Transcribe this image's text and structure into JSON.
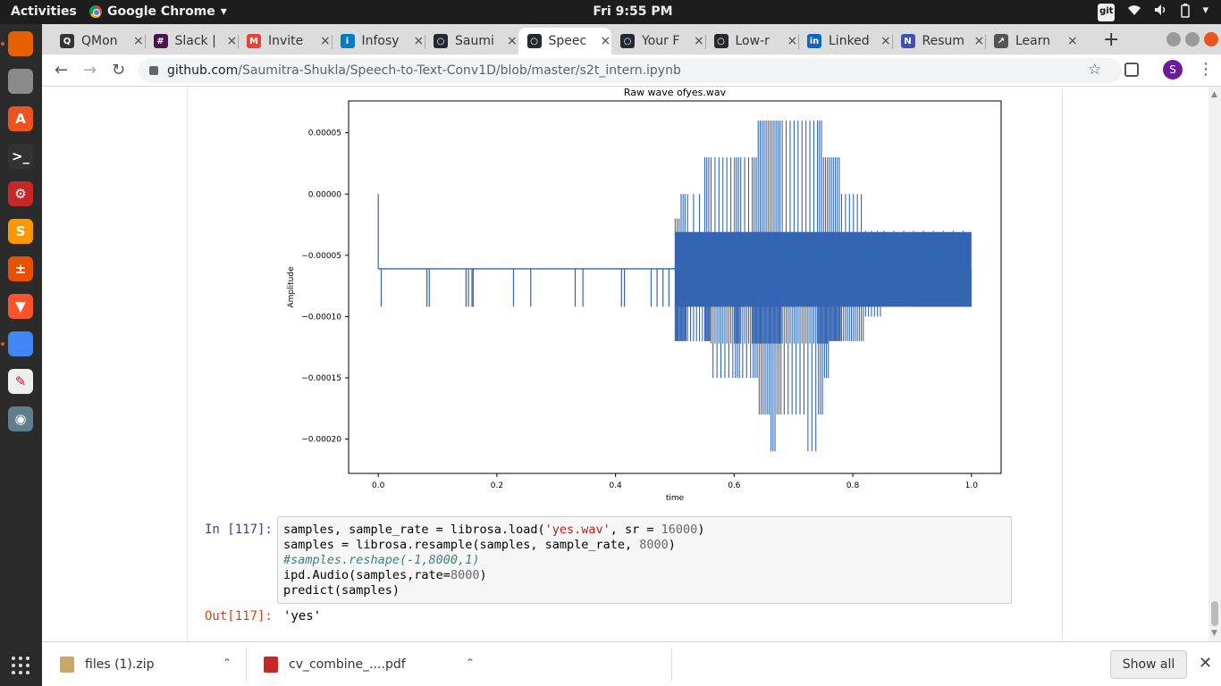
{
  "topbar": {
    "activities": "Activities",
    "app_name": "Google Chrome",
    "app_caret": "▾",
    "clock": "Fri  9:55 PM",
    "tray": {
      "git": "git",
      "wifi": "wifi-icon",
      "volume": "volume-icon",
      "battery": "battery-icon",
      "caret": "▾"
    }
  },
  "dock": {
    "items": [
      {
        "name": "firefox",
        "glyph": "",
        "color": "#e66000"
      },
      {
        "name": "files",
        "glyph": "",
        "color": "#8a8a8a"
      },
      {
        "name": "software",
        "glyph": "A",
        "color": "#e95420"
      },
      {
        "name": "terminal",
        "glyph": ">_",
        "color": "#333333"
      },
      {
        "name": "settings",
        "glyph": "⚙",
        "color": "#c62828"
      },
      {
        "name": "sublime",
        "glyph": "S",
        "color": "#ff9800"
      },
      {
        "name": "calculator",
        "glyph": "±",
        "color": "#e65100"
      },
      {
        "name": "brave",
        "glyph": "▼",
        "color": "#fb542b"
      },
      {
        "name": "chrome",
        "glyph": "",
        "color": "#4285f4"
      },
      {
        "name": "text-editor",
        "glyph": "✎",
        "color": "#eeeeee"
      },
      {
        "name": "screenshot",
        "glyph": "◉",
        "color": "#607d8b"
      }
    ]
  },
  "tabs": [
    {
      "label": "QMon",
      "icon_color": "#333333",
      "icon_glyph": "Q"
    },
    {
      "label": "Slack |",
      "icon_color": "#4a154b",
      "icon_glyph": "#"
    },
    {
      "label": "Invite",
      "icon_color": "#ea4335",
      "icon_glyph": "M"
    },
    {
      "label": "Infosy",
      "icon_color": "#007cc3",
      "icon_glyph": "i"
    },
    {
      "label": "Saumi",
      "icon_color": "#24292e",
      "icon_glyph": "○"
    },
    {
      "label": "Speec",
      "icon_color": "#24292e",
      "icon_glyph": "○"
    },
    {
      "label": "Your F",
      "icon_color": "#24292e",
      "icon_glyph": "○"
    },
    {
      "label": "Low-r",
      "icon_color": "#24292e",
      "icon_glyph": "○"
    },
    {
      "label": "Linked",
      "icon_color": "#0a66c2",
      "icon_glyph": "in"
    },
    {
      "label": "Resum",
      "icon_color": "#3f51b5",
      "icon_glyph": "N"
    },
    {
      "label": "Learn",
      "icon_color": "#555555",
      "icon_glyph": "↗"
    }
  ],
  "tab_close": "×",
  "new_tab": "+",
  "toolbar": {
    "back": "←",
    "forward": "→",
    "reload": "↻",
    "url_host": "github.com",
    "url_path": "/Saumitra-Shukla/Speech-to-Text-Conv1D/blob/master/s2t_intern.ipynb",
    "star": "☆",
    "profile_initial": "S",
    "menu": "⋮"
  },
  "chart_data": {
    "type": "line",
    "title": "Raw wave ofyes.wav",
    "xlabel": "time",
    "ylabel": "Amplitude",
    "xlim": [
      -0.05,
      1.05
    ],
    "ylim": [
      -0.000228,
      7.6e-05
    ],
    "xticks": [
      0.0,
      0.2,
      0.4,
      0.6,
      0.8,
      1.0
    ],
    "xtick_labels": [
      "0.0",
      "0.2",
      "0.4",
      "0.6",
      "0.8",
      "1.0"
    ],
    "yticks": [
      5e-05,
      0.0,
      -5e-05,
      -0.0001,
      -0.00015,
      -0.0002
    ],
    "ytick_labels": [
      "0.00005",
      "0.00000",
      "−0.00005",
      "−0.00010",
      "−0.00015",
      "−0.00020"
    ],
    "series": [
      {
        "color": "#3465b3",
        "baseline": -6.1e-05,
        "segments": [
          {
            "x_start": 0.0,
            "x_end": 0.0,
            "y_min": -6.1e-05,
            "y_max": 0.0
          },
          {
            "x_start": 0.0,
            "x_end": 0.5,
            "y_min": -6.1e-05,
            "y_max": -6.1e-05
          },
          {
            "x_start": 0.5,
            "x_end": 1.0,
            "y_min": -9.2e-05,
            "y_max": -3.1e-05
          }
        ],
        "spikes_down": [
          0.005,
          0.082,
          0.086,
          0.148,
          0.152,
          0.158,
          0.16,
          0.228,
          0.257,
          0.332,
          0.345,
          0.41,
          0.415,
          0.46,
          0.47,
          0.48,
          0.49
        ],
        "envelope": {
          "x": [
            0.5,
            0.51,
            0.52,
            0.55,
            0.56,
            0.58,
            0.6,
            0.61,
            0.63,
            0.64,
            0.65,
            0.66,
            0.67,
            0.68,
            0.7,
            0.72,
            0.74,
            0.75,
            0.76,
            0.77,
            0.78,
            0.8,
            0.82,
            0.85,
            0.9,
            0.95,
            1.0
          ],
          "top": [
            -2e-05,
            0.0,
            0.0,
            3e-05,
            3e-05,
            3e-05,
            3e-05,
            3e-05,
            3e-05,
            6e-05,
            6e-05,
            6e-05,
            6e-05,
            6e-05,
            6e-05,
            6e-05,
            6e-05,
            3e-05,
            3e-05,
            3e-05,
            0.0,
            0.0,
            -3e-05,
            -3e-05,
            -3e-05,
            -3e-05,
            -3e-05
          ],
          "bottom": [
            -0.00012,
            -0.00012,
            -0.00012,
            -0.00012,
            -0.00015,
            -0.00015,
            -0.00015,
            -0.00015,
            -0.00015,
            -0.00018,
            -0.00018,
            -0.00021,
            -0.00018,
            -0.00018,
            -0.00018,
            -0.00021,
            -0.00018,
            -0.00015,
            -0.00012,
            -0.00012,
            -0.00012,
            -0.00012,
            -0.0001,
            -9e-05,
            -9e-05,
            -9e-05,
            -9e-05
          ]
        }
      }
    ]
  },
  "cell": {
    "in_prompt": "In [117]:",
    "code_lines": [
      [
        {
          "t": "samples, sample_rate = librosa.load(",
          "c": ""
        },
        {
          "t": "'yes.wav'",
          "c": "str"
        },
        {
          "t": ", sr = ",
          "c": ""
        },
        {
          "t": "16000",
          "c": "num"
        },
        {
          "t": ")",
          "c": ""
        }
      ],
      [
        {
          "t": "samples = librosa.resample(samples, sample_rate, ",
          "c": ""
        },
        {
          "t": "8000",
          "c": "num"
        },
        {
          "t": ")",
          "c": ""
        }
      ],
      [
        {
          "t": "#samples.reshape(-1,8000,1)",
          "c": "cm"
        }
      ],
      [
        {
          "t": "ipd.Audio(samples,rate=",
          "c": ""
        },
        {
          "t": "8000",
          "c": "num"
        },
        {
          "t": ")",
          "c": ""
        }
      ],
      [
        {
          "t": "predict(samples)",
          "c": ""
        }
      ]
    ],
    "out_prompt": "Out[117]:",
    "output": "'yes'"
  },
  "downloads": {
    "items": [
      {
        "name": "files (1).zip",
        "icon": "zip-archive-icon",
        "color": "#c8a86a"
      },
      {
        "name": "cv_combine_....pdf",
        "icon": "pdf-file-icon",
        "color": "#c62828"
      }
    ],
    "caret": "⌃",
    "show_all": "Show all",
    "close": "✕"
  }
}
